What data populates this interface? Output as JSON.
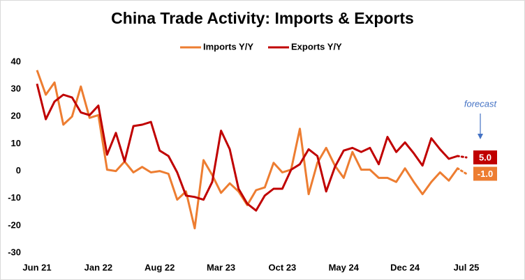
{
  "chart_data": {
    "type": "line",
    "title": "China Trade Activity: Imports & Exports",
    "annotation": "forecast",
    "categories": [
      "Jun 21",
      null,
      null,
      null,
      null,
      null,
      null,
      "Jan 22",
      null,
      null,
      null,
      null,
      null,
      null,
      "Aug 22",
      null,
      null,
      null,
      null,
      null,
      null,
      "Mar 23",
      null,
      null,
      null,
      null,
      null,
      null,
      "Oct 23",
      null,
      null,
      null,
      null,
      null,
      null,
      "May 24",
      null,
      null,
      null,
      null,
      null,
      null,
      "Dec 24",
      null,
      null,
      null,
      null,
      null,
      null,
      "Jul 25"
    ],
    "ylim": [
      -30,
      40
    ],
    "yticks": [
      -30,
      -20,
      -10,
      0,
      10,
      20,
      30,
      40
    ],
    "grid": false,
    "series": [
      {
        "name": "Imports Y/Y",
        "color": "#ed7d31",
        "values": [
          37,
          28,
          32.5,
          17,
          20,
          31,
          19.5,
          20.5,
          0.5,
          0,
          3.5,
          -0.5,
          1.5,
          -0.5,
          0,
          -1,
          -10.5,
          -7.5,
          -21,
          4,
          -1.5,
          -8,
          -4.5,
          -7.5,
          -12.5,
          -7,
          -6,
          3,
          -0.5,
          0.5,
          15.5,
          -8.5,
          3,
          8.5,
          2,
          -2.5,
          7,
          0.5,
          0.5,
          -2.5,
          -2.5,
          -4,
          1,
          -4,
          -8.5,
          -4,
          -0.5,
          -3.5,
          1,
          -1.0
        ],
        "value_labels": [
          null,
          null,
          null,
          null,
          null,
          null,
          null,
          null,
          null,
          null,
          null,
          null,
          null,
          null,
          null,
          null,
          null,
          null,
          null,
          null,
          null,
          null,
          null,
          null,
          null,
          null,
          null,
          null,
          null,
          null,
          null,
          null,
          null,
          null,
          null,
          null,
          null,
          null,
          null,
          null,
          null,
          null,
          null,
          null,
          null,
          null,
          null,
          null,
          null,
          "-1.0"
        ]
      },
      {
        "name": "Exports Y/Y",
        "color": "#c00000",
        "values": [
          32,
          19,
          25.5,
          28,
          27,
          21.5,
          20.5,
          24,
          6,
          14,
          3.5,
          16.5,
          17,
          18,
          7.5,
          5.5,
          -0.5,
          -9,
          -9.5,
          -10.5,
          -4,
          14.8,
          8,
          -6.5,
          -12,
          -14.5,
          -9,
          -6.5,
          -6.5,
          0.5,
          2.5,
          8,
          5.5,
          -7.5,
          1.5,
          7.5,
          8.5,
          7,
          8.5,
          2.5,
          12.5,
          7,
          10.5,
          6.5,
          2,
          12,
          8,
          4.5,
          5.5,
          5.0
        ],
        "value_labels": [
          null,
          null,
          null,
          null,
          null,
          null,
          null,
          null,
          null,
          null,
          null,
          null,
          null,
          null,
          null,
          null,
          null,
          null,
          null,
          null,
          null,
          null,
          null,
          null,
          null,
          null,
          null,
          null,
          null,
          null,
          null,
          null,
          null,
          null,
          null,
          null,
          null,
          null,
          null,
          null,
          null,
          null,
          null,
          null,
          null,
          null,
          null,
          null,
          null,
          "5.0"
        ]
      }
    ]
  }
}
